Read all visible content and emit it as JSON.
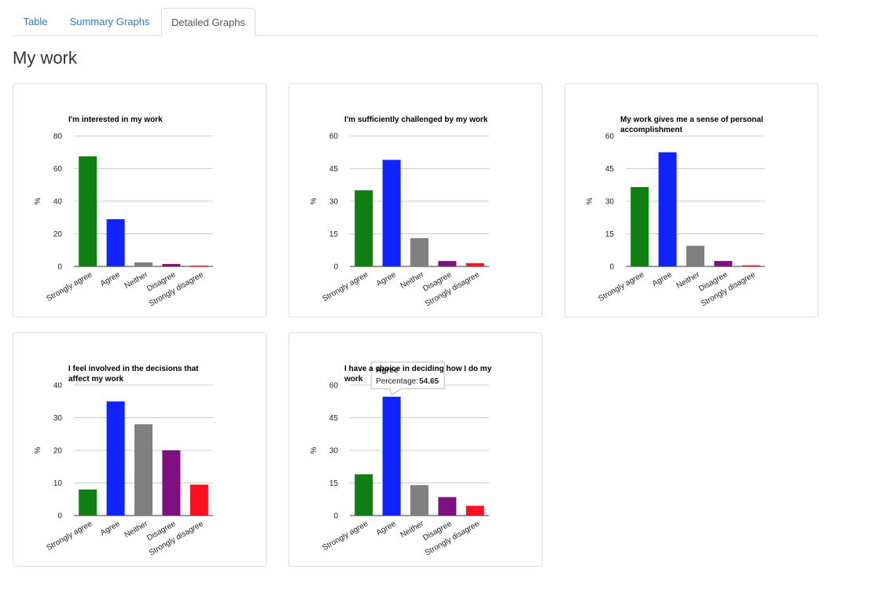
{
  "tabs": [
    "Table",
    "Summary Graphs",
    "Detailed Graphs"
  ],
  "active_tab": 2,
  "heading": "My work",
  "chart_data": [
    {
      "type": "bar",
      "title": "I'm interested in my work",
      "y_label": "%",
      "categories": [
        "Strongly agree",
        "Agree",
        "Neither",
        "Disagree",
        "Strongly disagree"
      ],
      "values": [
        67.5,
        29,
        2.5,
        1.5,
        0.5
      ],
      "colors": [
        "#0f7f12",
        "#0f24ff",
        "#808080",
        "#7f1080",
        "#ff1020"
      ],
      "ylim": [
        0,
        80
      ],
      "yticks": [
        0,
        20,
        40,
        60,
        80
      ],
      "grid": true
    },
    {
      "type": "bar",
      "title": "I'm sufficiently challenged by my work",
      "y_label": "%",
      "categories": [
        "Strongly agree",
        "Agree",
        "Neither",
        "Disagree",
        "Strongly disagree"
      ],
      "values": [
        35,
        49,
        13,
        2.5,
        1.5
      ],
      "colors": [
        "#0f7f12",
        "#0f24ff",
        "#808080",
        "#7f1080",
        "#ff1020"
      ],
      "ylim": [
        0,
        60
      ],
      "yticks": [
        0,
        15,
        30,
        45,
        60
      ],
      "grid": true
    },
    {
      "type": "bar",
      "title": "My work gives me a sense of personal accomplishment",
      "y_label": "%",
      "categories": [
        "Strongly agree",
        "Agree",
        "Neither",
        "Disagree",
        "Strongly disagree"
      ],
      "values": [
        36.5,
        52.5,
        9.5,
        2.5,
        0.5
      ],
      "colors": [
        "#0f7f12",
        "#0f24ff",
        "#808080",
        "#7f1080",
        "#ff1020"
      ],
      "ylim": [
        0,
        60
      ],
      "yticks": [
        0,
        15,
        30,
        45,
        60
      ],
      "grid": true
    },
    {
      "type": "bar",
      "title": "I feel involved in the decisions that affect my work",
      "y_label": "%",
      "categories": [
        "Strongly agree",
        "Agree",
        "Neither",
        "Disagree",
        "Strongly disagree"
      ],
      "values": [
        8,
        35,
        28,
        20,
        9.5
      ],
      "colors": [
        "#0f7f12",
        "#0f24ff",
        "#808080",
        "#7f1080",
        "#ff1020"
      ],
      "ylim": [
        0,
        40
      ],
      "yticks": [
        0,
        10,
        20,
        30,
        40
      ],
      "grid": true
    },
    {
      "type": "bar",
      "title": "I have a choice in deciding how I do my work",
      "y_label": "%",
      "categories": [
        "Strongly agree",
        "Agree",
        "Neither",
        "Disagree",
        "Strongly disagree"
      ],
      "values": [
        19,
        54.65,
        14,
        8.5,
        4.5
      ],
      "colors": [
        "#0f7f12",
        "#0f24ff",
        "#808080",
        "#7f1080",
        "#ff1020"
      ],
      "ylim": [
        0,
        60
      ],
      "yticks": [
        0,
        15,
        30,
        45,
        60
      ],
      "grid": true,
      "tooltip": {
        "index": 1,
        "label": "Percentage:"
      }
    }
  ]
}
